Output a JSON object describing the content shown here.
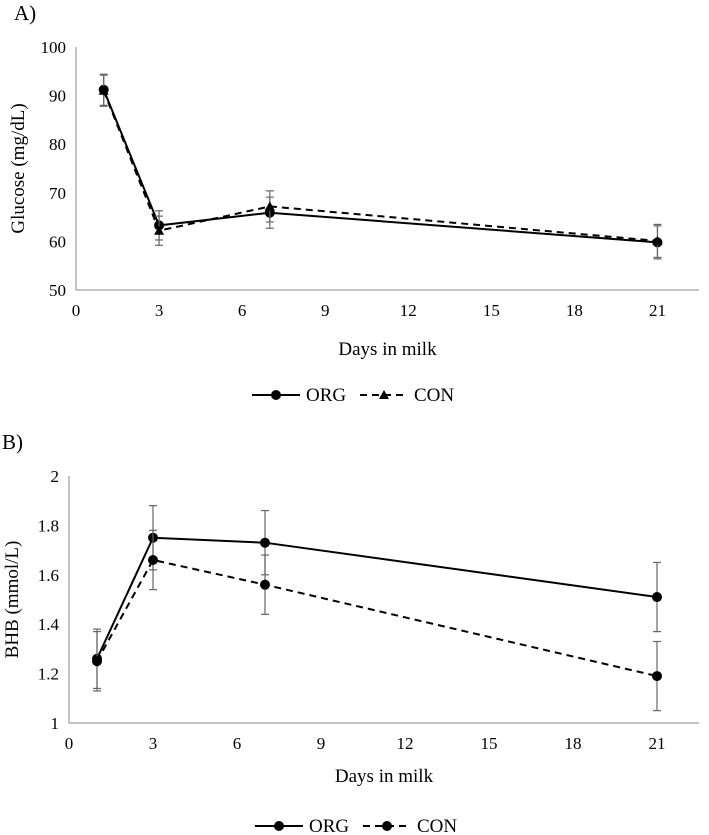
{
  "chart_data": [
    {
      "panel_label": "A)",
      "type": "line",
      "xlabel": "Days in milk",
      "ylabel": "Glucose (mg/dL)",
      "xlim": [
        0,
        22.5
      ],
      "ylim": [
        50,
        100
      ],
      "xticks": [
        0,
        3,
        6,
        9,
        12,
        15,
        18,
        21
      ],
      "yticks": [
        50,
        60,
        70,
        80,
        90,
        100
      ],
      "series": [
        {
          "name": "ORG",
          "style": "solid",
          "marker": "circle",
          "x": [
            1,
            3,
            7,
            21
          ],
          "values": [
            91.2,
            63.3,
            65.9,
            59.8
          ],
          "errors": [
            3.2,
            3.0,
            3.2,
            3.4
          ]
        },
        {
          "name": "CON",
          "style": "dashed",
          "marker": "triangle",
          "x": [
            1,
            3,
            7,
            21
          ],
          "values": [
            91.0,
            62.2,
            67.2,
            60.1
          ],
          "errors": [
            3.2,
            3.0,
            3.2,
            3.4
          ]
        }
      ],
      "legend": "bottom"
    },
    {
      "panel_label": "B)",
      "type": "line",
      "xlabel": "Days in milk",
      "ylabel": "BHB (mmol/L)",
      "xlim": [
        0,
        22.5
      ],
      "ylim": [
        1,
        2
      ],
      "xticks": [
        0,
        3,
        6,
        9,
        12,
        15,
        18,
        21
      ],
      "yticks": [
        1,
        1.2,
        1.4,
        1.6,
        1.8,
        2
      ],
      "series": [
        {
          "name": "ORG",
          "style": "solid",
          "marker": "circle",
          "x": [
            1,
            3,
            7,
            21
          ],
          "values": [
            1.26,
            1.75,
            1.73,
            1.51
          ],
          "errors": [
            0.12,
            0.13,
            0.13,
            0.14
          ]
        },
        {
          "name": "CON",
          "style": "dashed",
          "marker": "circle",
          "x": [
            1,
            3,
            7,
            21
          ],
          "values": [
            1.25,
            1.66,
            1.56,
            1.19
          ],
          "errors": [
            0.12,
            0.12,
            0.12,
            0.14
          ]
        }
      ],
      "legend": "bottom"
    }
  ]
}
